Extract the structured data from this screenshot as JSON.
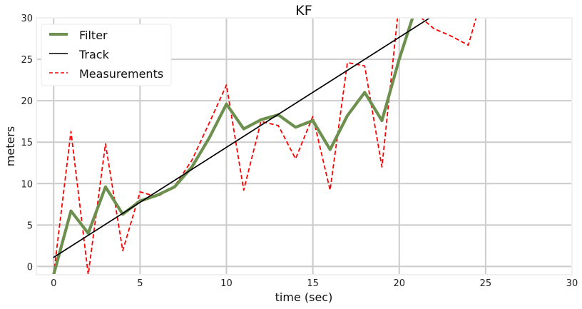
{
  "chart_data": {
    "type": "line",
    "title": "KF",
    "xlabel": "time (sec)",
    "ylabel": "meters",
    "xlim": [
      -1,
      30
    ],
    "ylim": [
      -1,
      30
    ],
    "xticks": [
      0,
      5,
      10,
      15,
      20,
      25,
      30
    ],
    "yticks": [
      0,
      5,
      10,
      15,
      20,
      25,
      30
    ],
    "grid": true,
    "legend_position": "top-left",
    "series": [
      {
        "name": "Filter",
        "style": "solid-thick",
        "color": "#6d904f",
        "x": [
          0,
          1,
          2,
          3,
          4,
          5,
          6,
          7,
          8,
          9,
          10,
          11,
          12,
          13,
          14,
          15,
          16,
          17,
          18,
          19,
          20,
          21,
          22
        ],
        "y": [
          -1.0,
          6.7,
          4.0,
          9.6,
          6.3,
          7.9,
          8.6,
          9.6,
          12.0,
          15.5,
          19.6,
          16.6,
          17.7,
          18.3,
          16.8,
          17.6,
          14.1,
          18.2,
          21.0,
          17.6,
          25.0,
          31.5,
          33.0
        ]
      },
      {
        "name": "Track",
        "style": "solid",
        "color": "#000000",
        "x": [
          0,
          22
        ],
        "y": [
          1.1,
          30.3
        ]
      },
      {
        "name": "Measurements",
        "style": "dashed",
        "color": "#ff0000",
        "x": [
          0,
          1,
          2,
          3,
          4,
          5,
          6,
          7,
          8,
          9,
          10,
          11,
          12,
          13,
          14,
          15,
          16,
          17,
          18,
          19,
          20,
          21,
          22,
          23,
          24,
          25
        ],
        "y": [
          -1.0,
          16.3,
          -1.0,
          14.8,
          1.9,
          9.0,
          8.4,
          9.7,
          12.8,
          17.3,
          21.9,
          9.2,
          17.5,
          17.0,
          13.0,
          18.1,
          9.2,
          24.6,
          24.2,
          12.0,
          32.0,
          30.5,
          28.7,
          27.8,
          26.7,
          34.0
        ]
      }
    ]
  }
}
